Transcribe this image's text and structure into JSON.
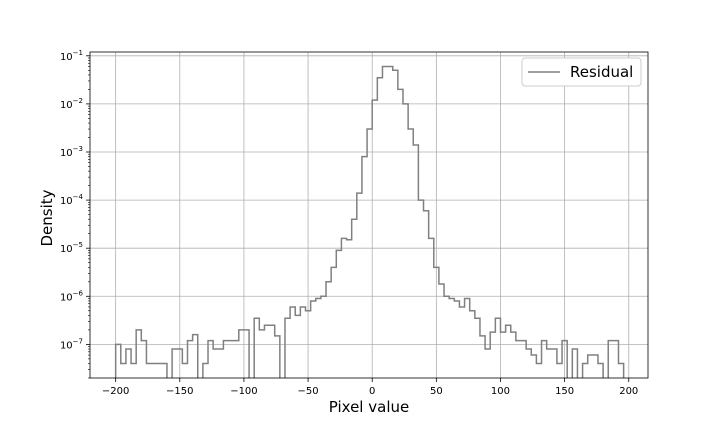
{
  "chart_data": {
    "type": "step-histogram",
    "xlabel": "Pixel value",
    "ylabel": "Density",
    "xlim": [
      -220,
      215
    ],
    "ylim": [
      2e-08,
      0.12
    ],
    "y_scale": "log",
    "grid": true,
    "legend": {
      "position": "top-right",
      "entries": [
        "Residual"
      ]
    },
    "x_ticks": [
      -200,
      -150,
      -100,
      -50,
      0,
      50,
      100,
      150,
      200
    ],
    "x_tick_labels": [
      "−200",
      "−150",
      "−100",
      "−50",
      "0",
      "50",
      "100",
      "150",
      "200"
    ],
    "y_ticks": [
      1e-07,
      1e-06,
      1e-05,
      0.0001,
      0.001,
      0.01,
      0.1
    ],
    "y_tick_labels": [
      {
        "base": "10",
        "exp": "−7"
      },
      {
        "base": "10",
        "exp": "−6"
      },
      {
        "base": "10",
        "exp": "−5"
      },
      {
        "base": "10",
        "exp": "−4"
      },
      {
        "base": "10",
        "exp": "−3"
      },
      {
        "base": "10",
        "exp": "−2"
      },
      {
        "base": "10",
        "exp": "−1"
      }
    ],
    "series": [
      {
        "name": "Residual",
        "color": "#808080",
        "bin_width": 4,
        "bin_start": -200,
        "values": [
          1e-07,
          4e-08,
          8e-08,
          4e-08,
          2e-07,
          1.2e-07,
          4e-08,
          4e-08,
          4e-08,
          4e-08,
          1e-08,
          8e-08,
          8e-08,
          4e-08,
          1.2e-07,
          1.6e-07,
          1e-08,
          4e-08,
          1.2e-07,
          8e-08,
          8e-08,
          1.2e-07,
          1.2e-07,
          1.2e-07,
          2e-07,
          2e-07,
          1e-08,
          3.5e-07,
          2e-07,
          2.5e-07,
          2.5e-07,
          1.5e-07,
          1e-08,
          3.5e-07,
          6e-07,
          4e-07,
          6e-07,
          5e-07,
          8e-07,
          9e-07,
          1e-06,
          2e-06,
          4e-06,
          9e-06,
          1.6e-05,
          1.5e-05,
          4e-05,
          0.00014,
          0.0008,
          0.003,
          0.012,
          0.035,
          0.06,
          0.06,
          0.05,
          0.02,
          0.01,
          0.003,
          0.0014,
          0.0001,
          6e-05,
          1.6e-05,
          4e-06,
          1.8e-06,
          1e-06,
          9e-07,
          8e-07,
          6e-07,
          9e-07,
          5e-07,
          3.5e-07,
          1.5e-07,
          8e-08,
          1.8e-07,
          3.5e-07,
          1.8e-07,
          2.5e-07,
          1.8e-07,
          1.2e-07,
          1.2e-07,
          8e-08,
          6e-08,
          4e-08,
          1.2e-07,
          8e-08,
          8e-08,
          4e-08,
          1.2e-07,
          1e-08,
          8e-08,
          1e-08,
          4e-08,
          6e-08,
          6e-08,
          4e-08,
          1e-08,
          1.2e-07,
          1.2e-07,
          4e-08
        ]
      }
    ]
  }
}
